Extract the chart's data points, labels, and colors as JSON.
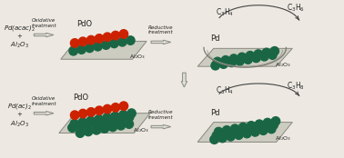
{
  "bg_color": "#ede9e2",
  "red_color": "#cc2200",
  "green_color": "#1a6644",
  "plate_face": "#ccccc0",
  "plate_edge": "#888880",
  "arrow_face": "#e0e0d8",
  "arrow_edge": "#888880",
  "text_color": "#222222",
  "curve_color": "#444444",
  "title_top_left": "Pd(acac)$_2$\n+\nAl$_2$O$_3$",
  "title_bottom_left": "Pd(ac)$_2$\n+\nAl$_2$O$_3$",
  "label_pdo": "PdO",
  "label_pd": "Pd",
  "label_al2o3": "Al$_2$O$_3$",
  "label_oxidative": "Oxidative\ntreatment",
  "label_reductive": "Reductive\ntreatment",
  "label_c3h4_top": "C$_3$H$_4$",
  "label_c3h6": "C$_3$H$_6$",
  "label_c3h4_bot": "C$_3$H$_4$",
  "label_c3h8": "C$_3$H$_8$"
}
